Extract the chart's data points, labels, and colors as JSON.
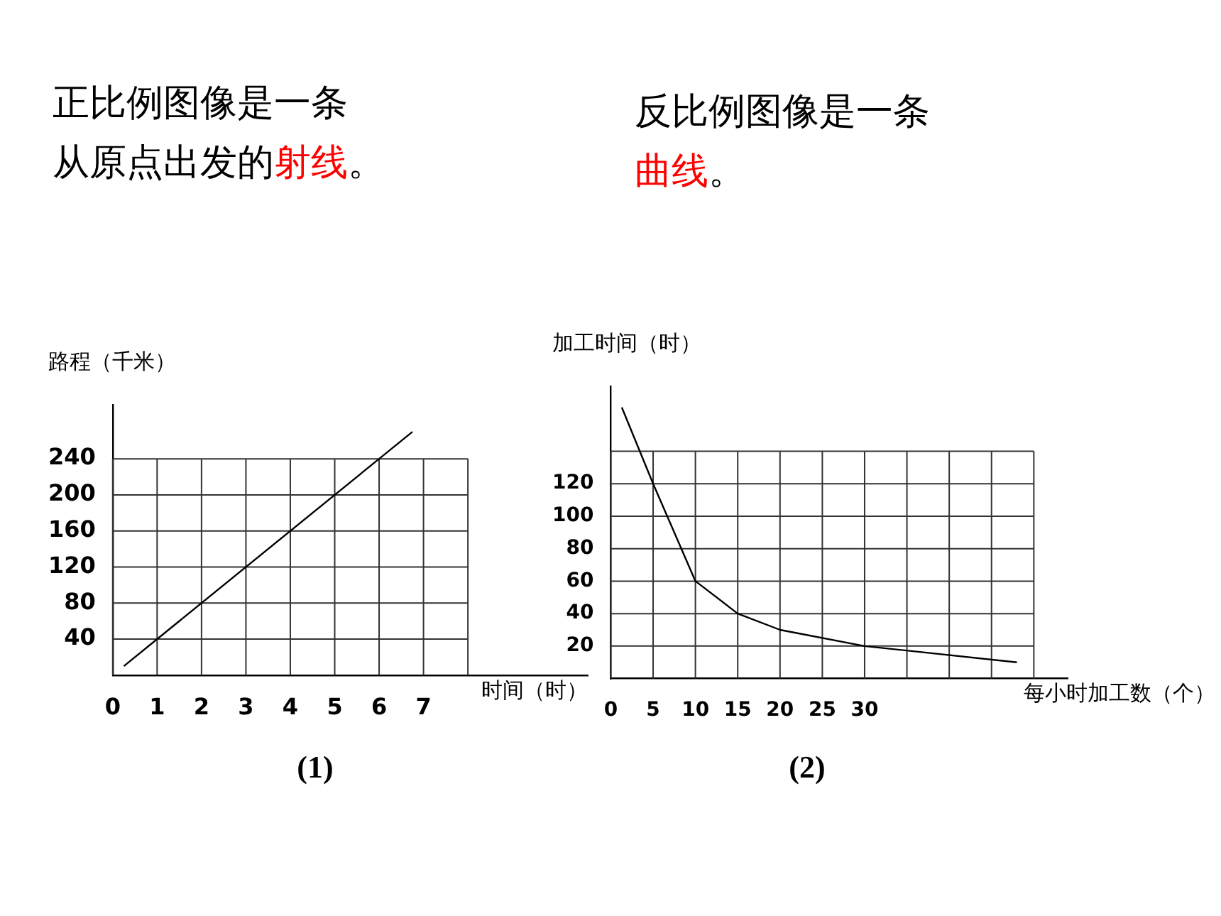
{
  "chart_data": [
    {
      "type": "line",
      "title": "(1)",
      "subtitle": "正比例图像是一条",
      "annotations": [
        "从原点出发的",
        "射线",
        "。"
      ],
      "xlabel": "时间（时）",
      "ylabel": "路程（千米）",
      "x": [
        0.25,
        6.75
      ],
      "series": [
        {
          "color": "#000000",
          "values": [
            10,
            270
          ]
        }
      ],
      "xlim": [
        0,
        10.7
      ],
      "xticks": [
        0,
        1,
        2,
        3,
        4,
        5,
        6,
        7,
        {
          "value": 8,
          "label": null
        }
      ],
      "ylim": [
        0,
        300
      ],
      "yticks": [
        40,
        80,
        120,
        160,
        200,
        240
      ],
      "grid": true,
      "marker": "none",
      "line_style": "solid"
    },
    {
      "type": "line",
      "title": "(2)",
      "subtitle": "反比例图像是一条",
      "annotations": [
        "曲线",
        "。"
      ],
      "xlabel": "每小时加工数（个）",
      "ylabel": "加工时间（时）",
      "x": [
        1.3,
        5,
        10,
        15,
        20,
        30,
        48
      ],
      "series": [
        {
          "color": "#000000",
          "values": [
            167,
            120,
            60,
            40,
            30,
            20,
            10
          ]
        }
      ],
      "xlim": [
        0,
        54
      ],
      "xticks": [
        0,
        5,
        10,
        15,
        20,
        25,
        30,
        {
          "value": 35,
          "label": null
        },
        {
          "value": 40,
          "label": null
        },
        {
          "value": 45,
          "label": null
        },
        {
          "value": 50,
          "label": null
        }
      ],
      "ylim": [
        0,
        180
      ],
      "yticks": [
        20,
        40,
        60,
        80,
        100,
        120,
        {
          "value": 140,
          "label": null
        }
      ],
      "grid": true,
      "marker": "none",
      "line_style": "solid"
    }
  ]
}
